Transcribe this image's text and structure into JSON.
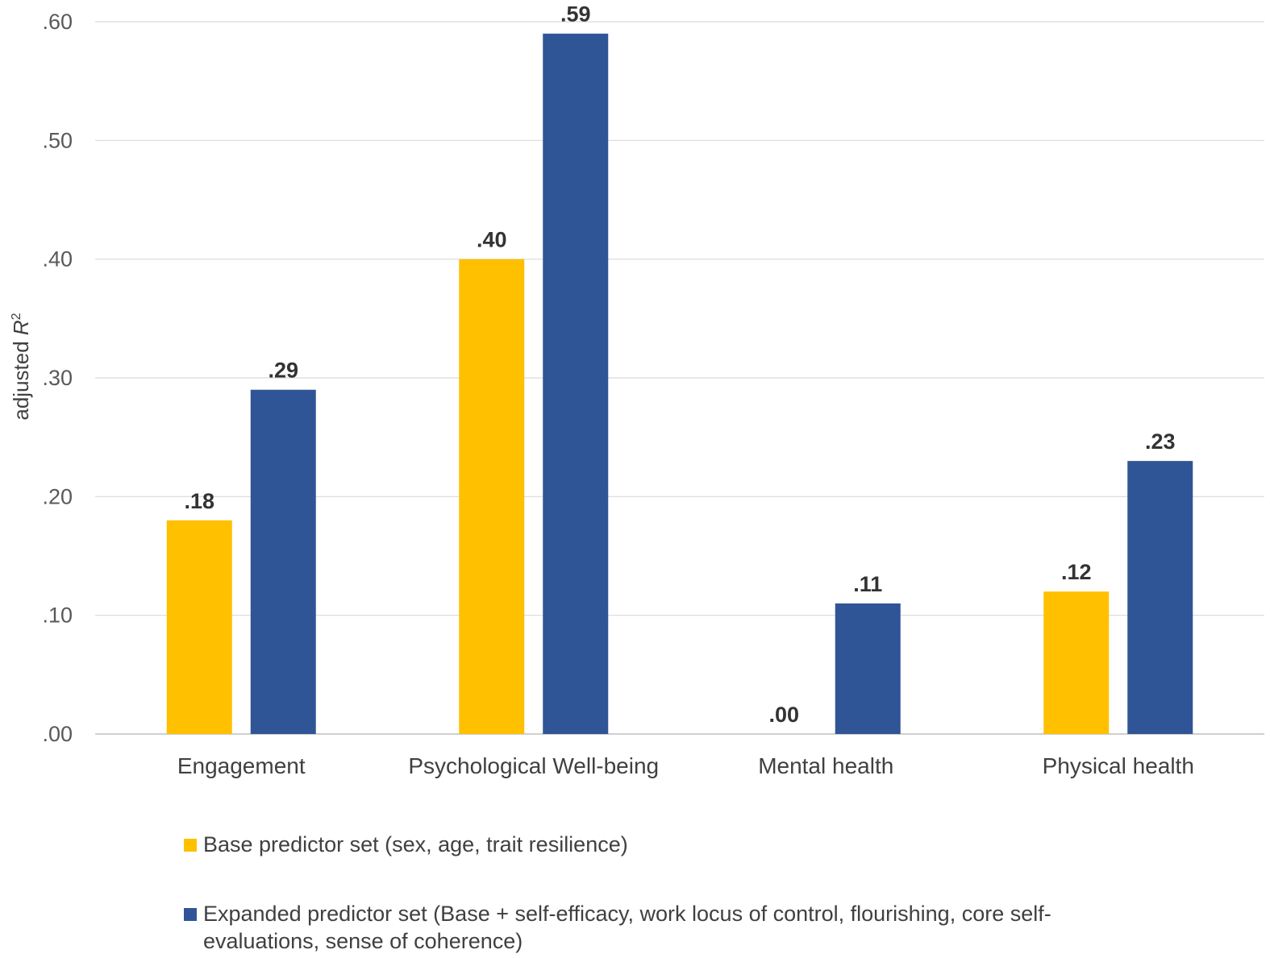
{
  "chart_data": {
    "type": "bar",
    "ylabel": "adjusted",
    "ylabel_italic": "R",
    "ylabel_sup": "2",
    "ylim": [
      0,
      0.6
    ],
    "yticks": [
      ".00",
      ".10",
      ".20",
      ".30",
      ".40",
      ".50",
      ".60"
    ],
    "ytick_values": [
      0,
      0.1,
      0.2,
      0.3,
      0.4,
      0.5,
      0.6
    ],
    "grid": true,
    "legend_position": "bottom",
    "categories": [
      "Engagement",
      "Psychological Well-being",
      "Mental health",
      "Physical health"
    ],
    "series": [
      {
        "name": "Base predictor set (sex, age, trait resilience)",
        "color": "#FFC000",
        "values": [
          0.18,
          0.4,
          0.0,
          0.12
        ],
        "labels": [
          ".18",
          ".40",
          ".00",
          ".12"
        ]
      },
      {
        "name": "Expanded predictor set (Base + self-efficacy, work locus of control, flourishing, core self-evaluations, sense of coherence)",
        "color": "#2F5597",
        "values": [
          0.29,
          0.59,
          0.11,
          0.23
        ],
        "labels": [
          ".29",
          ".59",
          ".11",
          ".23"
        ]
      }
    ]
  }
}
